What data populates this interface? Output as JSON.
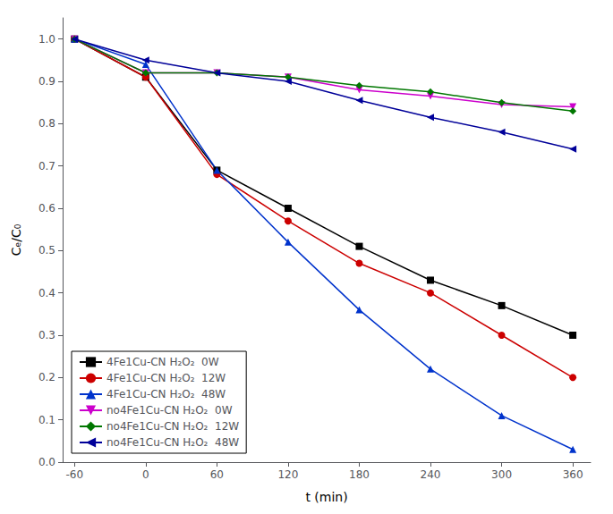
{
  "chart_data": {
    "type": "line",
    "xlabel": "t (min)",
    "ylabel": "Cₑ/C₀",
    "x": [
      -60,
      0,
      60,
      120,
      180,
      240,
      300,
      360
    ],
    "series": [
      {
        "name": "4Fe1Cu-CN H₂O₂  0W",
        "color": "#000000",
        "marker": "square",
        "values": [
          1.0,
          0.91,
          0.69,
          0.6,
          0.51,
          0.43,
          0.37,
          0.3
        ]
      },
      {
        "name": "4Fe1Cu-CN H₂O₂  12W",
        "color": "#cc0000",
        "marker": "circle",
        "values": [
          1.0,
          0.91,
          0.68,
          0.57,
          0.47,
          0.4,
          0.3,
          0.2
        ]
      },
      {
        "name": "4Fe1Cu-CN H₂O₂  48W",
        "color": "#0033cc",
        "marker": "triangle-up",
        "values": [
          1.0,
          0.94,
          0.69,
          0.52,
          0.36,
          0.22,
          0.11,
          0.03
        ]
      },
      {
        "name": "no4Fe1Cu-CN H₂O₂  0W",
        "color": "#cc00cc",
        "marker": "triangle-down",
        "values": [
          1.0,
          0.92,
          0.92,
          0.91,
          0.88,
          0.865,
          0.845,
          0.84
        ]
      },
      {
        "name": "no4Fe1Cu-CN H₂O₂  12W",
        "color": "#007700",
        "marker": "diamond",
        "values": [
          1.0,
          0.92,
          0.92,
          0.91,
          0.89,
          0.875,
          0.85,
          0.83
        ]
      },
      {
        "name": "no4Fe1Cu-CN H₂O₂  48W",
        "color": "#000099",
        "marker": "triangle-left",
        "values": [
          1.0,
          0.95,
          0.92,
          0.9,
          0.855,
          0.815,
          0.78,
          0.74
        ]
      }
    ],
    "xlim": [
      -70,
      375
    ],
    "ylim": [
      0.0,
      1.05
    ],
    "xticks": [
      -60,
      0,
      60,
      120,
      180,
      240,
      300,
      360
    ],
    "yticks": [
      {
        "value": 0.0,
        "label": "0.0"
      },
      0.1,
      0.2,
      0.3,
      0.4,
      0.5,
      0.6,
      0.7,
      0.8,
      0.9,
      {
        "value": 1.0,
        "label": "1.0"
      }
    ],
    "grid": false,
    "legend": "lower left"
  }
}
